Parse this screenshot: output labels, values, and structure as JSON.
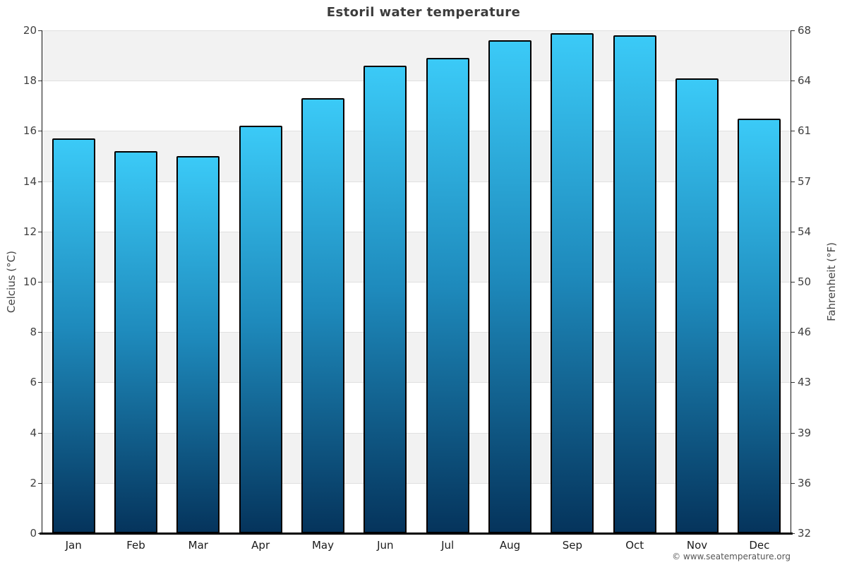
{
  "title": "Estoril water temperature",
  "copyright": "© www.seatemperature.org",
  "axes": {
    "left_label": "Celcius (°C)",
    "right_label": "Fahrenheit (°F)"
  },
  "chart_data": {
    "type": "bar",
    "title": "Estoril water temperature",
    "categories": [
      "Jan",
      "Feb",
      "Mar",
      "Apr",
      "May",
      "Jun",
      "Jul",
      "Aug",
      "Sep",
      "Oct",
      "Nov",
      "Dec"
    ],
    "values": [
      15.7,
      15.2,
      15.0,
      16.2,
      17.3,
      18.6,
      18.9,
      19.6,
      19.9,
      19.8,
      18.1,
      16.5
    ],
    "ylabel": "Celcius (°C)",
    "ylabel_right": "Fahrenheit (°F)",
    "ylim": [
      0,
      20
    ],
    "yticks": [
      "20",
      "18",
      "16",
      "14",
      "12",
      "10",
      "8",
      "6",
      "4",
      "2",
      "0"
    ],
    "yticks_right_labels": [
      "68",
      "64",
      "61",
      "57",
      "54",
      "50",
      "46",
      "43",
      "39",
      "36",
      "32"
    ],
    "grid": true,
    "legend_position": "none",
    "colors": {
      "bar_top": "#3bcaf7",
      "bar_mid": "#1e8abc",
      "bar_bottom": "#05345c",
      "bar_border": "#000000",
      "band_gray": "#f2f2f2",
      "band_white": "#ffffff",
      "gridline": "#e0e0e0",
      "axis_line": "#111111",
      "title_text": "#3c3c3c",
      "tick_text": "#404040"
    }
  }
}
